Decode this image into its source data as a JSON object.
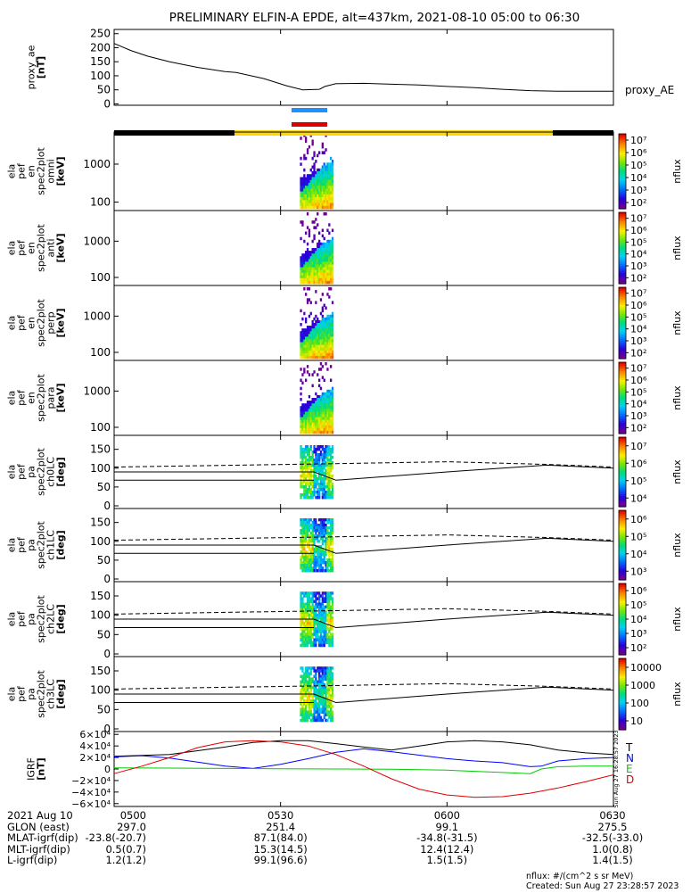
{
  "title": "PRELIMINARY ELFIN-A EPDE, alt=437km, 2021-08-10 05:00 to 06:30",
  "chart_data": {
    "type": "line",
    "time_range": [
      "2021-08-10 05:00",
      "2021-08-10 06:30"
    ],
    "x_tick_labels": [
      "0500",
      "0530",
      "0600",
      "0630"
    ],
    "panels": [
      {
        "id": "proxy_ae",
        "type": "line",
        "ylabel": [
          "proxy_ae",
          "[nT]"
        ],
        "yticks": [
          0,
          50,
          100,
          150,
          200,
          250
        ],
        "ylim": [
          -5,
          265
        ],
        "legend": "proxy_AE",
        "series": [
          {
            "name": "proxy_AE",
            "x": [
              0,
              3,
              6,
              10,
              15,
              20,
              22,
              27,
              31,
              34,
              37,
              38,
              40,
              45,
              50,
              55,
              60,
              65,
              70,
              75,
              80,
              85,
              90
            ],
            "y": [
              215,
              190,
              170,
              150,
              130,
              115,
              112,
              90,
              65,
              50,
              52,
              62,
              72,
              73,
              70,
              67,
              62,
              58,
              52,
              47,
              45,
              45,
              45
            ]
          }
        ]
      },
      {
        "id": "en_spec_omni",
        "type": "heatmap",
        "ylabel": [
          "ela",
          "pef",
          "en",
          "spec2plot",
          "omni",
          "[keV]"
        ],
        "yticks": [
          "100",
          "1000"
        ],
        "ylog": true,
        "ylim": [
          60,
          7000
        ],
        "colorbar_ticks": [
          "10²",
          "10³",
          "10⁴",
          "10⁵",
          "10⁶",
          "10⁷"
        ],
        "colorbar_label": "nflux",
        "active_interval_min": [
          33.5,
          39.5
        ]
      },
      {
        "id": "en_spec_anti",
        "type": "heatmap",
        "ylabel": [
          "ela",
          "pef",
          "en",
          "spec2plot",
          "anti",
          "[keV]"
        ],
        "yticks": [
          "100",
          "1000"
        ],
        "ylog": true,
        "ylim": [
          60,
          7000
        ],
        "colorbar_ticks": [
          "10²",
          "10³",
          "10⁴",
          "10⁵",
          "10⁶",
          "10⁷"
        ],
        "colorbar_label": "nflux",
        "active_interval_min": [
          33.5,
          39.5
        ]
      },
      {
        "id": "en_spec_perp",
        "type": "heatmap",
        "ylabel": [
          "ela",
          "pef",
          "en",
          "spec2plot",
          "perp",
          "[keV]"
        ],
        "yticks": [
          "100",
          "1000"
        ],
        "ylog": true,
        "ylim": [
          60,
          7000
        ],
        "colorbar_ticks": [
          "10²",
          "10³",
          "10⁴",
          "10⁵",
          "10⁶",
          "10⁷"
        ],
        "colorbar_label": "nflux",
        "active_interval_min": [
          33.5,
          39.5
        ]
      },
      {
        "id": "en_spec_para",
        "type": "heatmap",
        "ylabel": [
          "ela",
          "pef",
          "en",
          "spec2plot",
          "para",
          "[keV]"
        ],
        "yticks": [
          "100",
          "1000"
        ],
        "ylog": true,
        "ylim": [
          60,
          7000
        ],
        "colorbar_ticks": [
          "10²",
          "10³",
          "10⁴",
          "10⁵",
          "10⁶",
          "10⁷"
        ],
        "colorbar_label": "nflux",
        "active_interval_min": [
          33.5,
          39.5
        ]
      },
      {
        "id": "pa_ch0",
        "type": "heatmap",
        "ylabel": [
          "ela",
          "pef",
          "pa",
          "spec2plot",
          "ch0LC",
          "[deg]"
        ],
        "yticks": [
          0,
          50,
          100,
          150
        ],
        "ylim": [
          0,
          180
        ],
        "colorbar_ticks": [
          "10⁴",
          "10⁵",
          "10⁶",
          "10⁷"
        ],
        "colorbar_label": "nflux",
        "active_interval_min": [
          33.5,
          39.5
        ]
      },
      {
        "id": "pa_ch1",
        "type": "heatmap",
        "ylabel": [
          "ela",
          "pef",
          "pa",
          "spec2plot",
          "ch1LC",
          "[deg]"
        ],
        "yticks": [
          0,
          50,
          100,
          150
        ],
        "ylim": [
          0,
          180
        ],
        "colorbar_ticks": [
          "10³",
          "10⁴",
          "10⁵",
          "10⁶"
        ],
        "colorbar_label": "nflux",
        "active_interval_min": [
          33.5,
          39.5
        ]
      },
      {
        "id": "pa_ch2",
        "type": "heatmap",
        "ylabel": [
          "ela",
          "pef",
          "pa",
          "spec2plot",
          "ch2LC",
          "[deg]"
        ],
        "yticks": [
          0,
          50,
          100,
          150
        ],
        "ylim": [
          0,
          180
        ],
        "colorbar_ticks": [
          "10²",
          "10³",
          "10⁴",
          "10⁵",
          "10⁶"
        ],
        "colorbar_label": "nflux",
        "active_interval_min": [
          33.5,
          39.5
        ]
      },
      {
        "id": "pa_ch3",
        "type": "heatmap",
        "ylabel": [
          "ela",
          "pef",
          "pa",
          "spec2plot",
          "ch3LC",
          "[deg]"
        ],
        "yticks": [
          0,
          50,
          100,
          150
        ],
        "ylim": [
          0,
          180
        ],
        "colorbar_ticks": [
          "10",
          "100",
          "1000",
          "10000"
        ],
        "colorbar_label": "nflux",
        "active_interval_min": [
          33.5,
          39.5
        ]
      },
      {
        "id": "igrf",
        "type": "line",
        "ylabel": [
          "IGRF",
          "[nT]"
        ],
        "ylim": [
          -65000,
          65000
        ],
        "ytick_values": [
          -60000,
          -40000,
          -20000,
          0,
          20000,
          40000,
          60000
        ],
        "yticks": [
          "−6×10⁴",
          "−4×10⁴",
          "−2×10⁴",
          "0",
          "2×10⁴",
          "4×10⁴",
          "6×10⁴"
        ],
        "legend": [
          "T",
          "N",
          "E",
          "D"
        ],
        "series": [
          {
            "name": "T",
            "color": "#000000",
            "x": [
              0,
              10,
              20,
              25,
              30,
              35,
              40,
              45,
              50,
              55,
              60,
              65,
              70,
              75,
              80,
              85,
              90
            ],
            "y": [
              22000,
              25000,
              38000,
              46000,
              49000,
              49000,
              44000,
              38000,
              33000,
              40000,
              47000,
              49000,
              47000,
              42000,
              33000,
              28000,
              25000
            ]
          },
          {
            "name": "N",
            "color": "#0000ff",
            "x": [
              0,
              5,
              10,
              15,
              20,
              25,
              30,
              35,
              40,
              45,
              50,
              55,
              60,
              65,
              70,
              75,
              77,
              80,
              85,
              90
            ],
            "y": [
              21000,
              23000,
              19000,
              12000,
              5000,
              1000,
              8000,
              18000,
              29000,
              35000,
              30000,
              24000,
              18000,
              14000,
              11000,
              4000,
              5000,
              14000,
              18000,
              20000
            ]
          },
          {
            "name": "E",
            "color": "#00cc00",
            "x": [
              0,
              10,
              20,
              30,
              40,
              50,
              60,
              65,
              70,
              75,
              77,
              80,
              85,
              90
            ],
            "y": [
              2000,
              1500,
              1000,
              500,
              0,
              -500,
              -2000,
              -4000,
              -6000,
              -8000,
              0,
              4000,
              5000,
              5000
            ]
          },
          {
            "name": "D",
            "color": "#dd0000",
            "x": [
              0,
              5,
              10,
              15,
              20,
              25,
              30,
              35,
              40,
              45,
              50,
              55,
              60,
              65,
              70,
              75,
              80,
              85,
              90
            ],
            "y": [
              -8000,
              5000,
              20000,
              37000,
              47000,
              49000,
              47000,
              40000,
              25000,
              5000,
              -17000,
              -35000,
              -45000,
              -49000,
              -48000,
              -42000,
              -33000,
              -22000,
              -10000
            ]
          }
        ]
      }
    ]
  },
  "side_stamp": "Sun Aug 27 16:28:57 2023",
  "footer": {
    "rows": [
      {
        "label": "2021 Aug 10",
        "values": [
          "0500",
          "0530",
          "0600",
          "0630"
        ]
      },
      {
        "label": "GLON (east)",
        "values": [
          "297.0",
          "251.4",
          "99.1",
          "275.5"
        ]
      },
      {
        "label": "MLAT-igrf(dip)",
        "values": [
          "-23.8(-20.7)",
          "87.1(84.0)",
          "-34.8(-31.5)",
          "-32.5(-33.0)"
        ]
      },
      {
        "label": "MLT-igrf(dip)",
        "values": [
          "0.5(0.7)",
          "15.3(14.5)",
          "12.4(12.4)",
          "1.0(0.8)"
        ]
      },
      {
        "label": "L-igrf(dip)",
        "values": [
          "1.2(1.2)",
          "99.1(96.6)",
          "1.5(1.5)",
          "1.4(1.5)"
        ]
      }
    ],
    "units_note": "nflux: #/(cm^2 s sr MeV)",
    "created": "Created: Sun Aug 27 23:28:57 2023"
  },
  "colors": {
    "ascending_bar": "#1e90ff",
    "descending_bar": "#dd0000",
    "sunlit_bar": "#ffd700",
    "shadow_bar": "#000000"
  }
}
